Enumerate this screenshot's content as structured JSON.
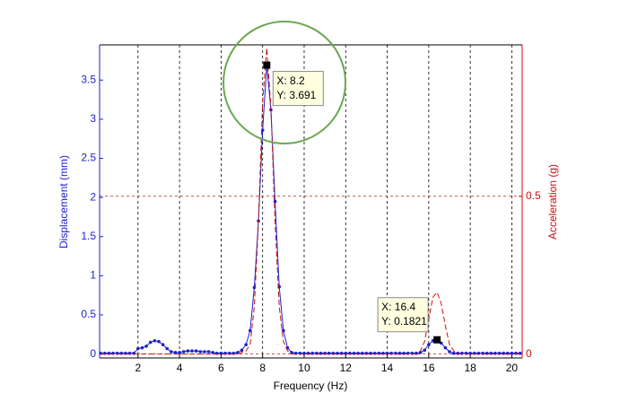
{
  "chart_data": {
    "type": "line",
    "xlabel": "Frequency (Hz)",
    "ylabel": "Displacement (mm)",
    "y2label": "Acceleration (g)",
    "xlim": [
      0.15,
      20.5
    ],
    "ylim": [
      -0.05,
      3.95
    ],
    "y2lim": [
      -0.0125,
      0.98
    ],
    "xticks": [
      2,
      4,
      6,
      8,
      10,
      12,
      14,
      16,
      18,
      20
    ],
    "yticks": [
      0,
      0.5,
      1,
      1.5,
      2,
      2.5,
      3,
      3.5
    ],
    "y2ticks": [
      0,
      0.5
    ],
    "xgrid": true,
    "y2grid": true,
    "x": [
      0.2,
      0.4,
      0.6,
      0.8,
      1,
      1.2,
      1.4,
      1.6,
      1.8,
      2,
      2.2,
      2.4,
      2.6,
      2.8,
      3,
      3.2,
      3.4,
      3.6,
      3.8,
      4,
      4.2,
      4.4,
      4.6,
      4.8,
      5,
      5.2,
      5.4,
      5.6,
      5.8,
      6,
      6.2,
      6.4,
      6.6,
      6.8,
      7,
      7.2,
      7.4,
      7.6,
      7.8,
      8,
      8.2,
      8.4,
      8.6,
      8.8,
      9,
      9.2,
      9.4,
      9.6,
      9.8,
      10,
      10.2,
      10.4,
      10.6,
      10.8,
      11,
      11.2,
      11.4,
      11.6,
      11.8,
      12,
      12.2,
      12.4,
      12.6,
      12.8,
      13,
      13.2,
      13.4,
      13.6,
      13.8,
      14,
      14.2,
      14.4,
      14.6,
      14.8,
      15,
      15.2,
      15.4,
      15.6,
      15.8,
      16,
      16.2,
      16.4,
      16.6,
      16.8,
      17,
      17.2,
      17.4,
      17.6,
      17.8,
      18,
      18.2,
      18.4,
      18.6,
      18.8,
      19,
      19.2,
      19.4,
      19.6,
      19.8,
      20,
      20.2,
      20.4
    ],
    "series": [
      {
        "color": "#1f1fd0",
        "axis": "y",
        "marker": true,
        "dashed": false,
        "values": [
          0.01,
          0.01,
          0.01,
          0.01,
          0.01,
          0.01,
          0.01,
          0.01,
          0.01,
          0.07,
          0.08,
          0.1,
          0.15,
          0.17,
          0.16,
          0.12,
          0.07,
          0.03,
          0.02,
          0.02,
          0.03,
          0.04,
          0.04,
          0.04,
          0.03,
          0.03,
          0.03,
          0.02,
          0.01,
          0.01,
          0.01,
          0.01,
          0.01,
          0.02,
          0.05,
          0.12,
          0.3,
          0.85,
          1.7,
          2.86,
          3.691,
          3.12,
          1.95,
          0.86,
          0.3,
          0.08,
          0.02,
          0.01,
          0.01,
          0.01,
          0.01,
          0.01,
          0.01,
          0.01,
          0.01,
          0.01,
          0.01,
          0.01,
          0.01,
          0.01,
          0.01,
          0.01,
          0.01,
          0.01,
          0.01,
          0.01,
          0.01,
          0.01,
          0.01,
          0.01,
          0.01,
          0.01,
          0.01,
          0.01,
          0.01,
          0.01,
          0.01,
          0.02,
          0.05,
          0.12,
          0.17,
          0.1821,
          0.14,
          0.08,
          0.03,
          0.01,
          0.01,
          0.01,
          0.01,
          0.01,
          0.01,
          0.01,
          0.01,
          0.01,
          0.01,
          0.01,
          0.01,
          0.01,
          0.01,
          0.01,
          0.01,
          0.01
        ]
      },
      {
        "color": "#cc1010",
        "axis": "y2",
        "marker": false,
        "dashed": true,
        "values": [
          0,
          0,
          0,
          0,
          0,
          0,
          0,
          0,
          0,
          0,
          0,
          0,
          0,
          0,
          0,
          0,
          0,
          0,
          0,
          0,
          0,
          0,
          0,
          0,
          0,
          0,
          0,
          0,
          0,
          0,
          0,
          0,
          0,
          0,
          0.005,
          0.01,
          0.03,
          0.15,
          0.42,
          0.8,
          0.97,
          0.78,
          0.42,
          0.15,
          0.04,
          0.01,
          0,
          0,
          0,
          0,
          0,
          0,
          0,
          0,
          0,
          0,
          0,
          0,
          0,
          0,
          0,
          0,
          0,
          0,
          0,
          0,
          0,
          0,
          0,
          0,
          0,
          0,
          0,
          0,
          0,
          0,
          0,
          0.01,
          0.04,
          0.11,
          0.18,
          0.196,
          0.16,
          0.09,
          0.03,
          0.01,
          0,
          0,
          0,
          0,
          0,
          0,
          0,
          0,
          0,
          0,
          0,
          0,
          0,
          0,
          0,
          0
        ]
      }
    ],
    "annotations": [
      {
        "x": 8.2,
        "y": 3.691,
        "label_x": "X: 8.2",
        "label_y": "Y: 3.691"
      },
      {
        "x": 16.4,
        "y": 0.1821,
        "label_x": "X: 16.4",
        "label_y": "Y: 0.1821"
      }
    ]
  }
}
